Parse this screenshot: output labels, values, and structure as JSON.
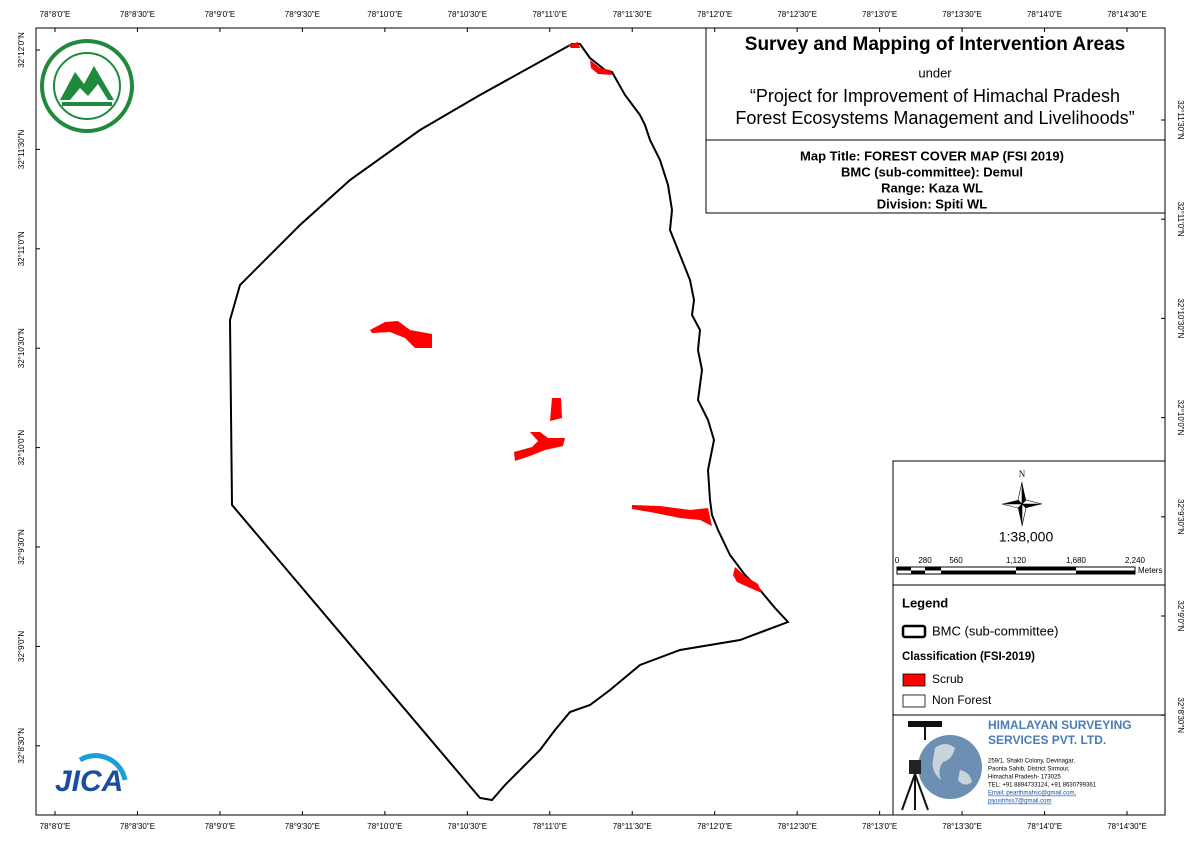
{
  "graticule": {
    "top": [
      "78°8'0\"E",
      "78°8'30\"E",
      "78°9'0\"E",
      "78°9'30\"E",
      "78°10'0\"E",
      "78°10'30\"E",
      "78°11'0\"E",
      "78°11'30\"E",
      "78°12'0\"E",
      "78°12'30\"E",
      "78°13'0\"E",
      "78°13'30\"E",
      "78°14'0\"E",
      "78°14'30\"E"
    ],
    "bottom": [
      "78°8'0\"E",
      "78°8'30\"E",
      "78°9'0\"E",
      "78°9'30\"E",
      "78°10'0\"E",
      "78°10'30\"E",
      "78°11'0\"E",
      "78°11'30\"E",
      "78°12'0\"E",
      "78°12'30\"E",
      "78°13'0\"E",
      "78°13'30\"E",
      "78°14'0\"E",
      "78°14'30\"E"
    ],
    "left": [
      "32°12'0\"N",
      "32°11'30\"N",
      "32°11'0\"N",
      "32°10'30\"N",
      "32°10'0\"N",
      "32°9'30\"N",
      "32°9'0\"N",
      "32°8'30\"N"
    ],
    "right": [
      "32°11'30\"N",
      "32°11'0\"N",
      "32°10'30\"N",
      "32°10'0\"N",
      "32°9'30\"N",
      "32°9'0\"N",
      "32°8'30\"N"
    ]
  },
  "title_box": {
    "title": "Survey and Mapping of Intervention Areas",
    "under": "under",
    "project": [
      "“Project for Improvement of Himachal Pradesh",
      "Forest Ecosystems Management and Livelihoods”"
    ]
  },
  "map_info": [
    "Map Title: FOREST COVER MAP (FSI 2019)",
    "BMC (sub-committee): Demul",
    "Range: Kaza WL",
    "Division: Spiti WL"
  ],
  "north_arrow": "N",
  "scale": {
    "ratio": "1:38,000",
    "labels": [
      "0",
      "280",
      "560",
      "1,120",
      "1,680",
      "2,240"
    ],
    "unit": "Meters"
  },
  "legend": {
    "title": "Legend",
    "boundary": "BMC (sub-committee)",
    "classification": "Classification (FSI-2019)",
    "items": [
      {
        "label": "Scrub",
        "color": "#ff0000"
      },
      {
        "label": "Non Forest",
        "color": "#ffffff"
      }
    ]
  },
  "company": {
    "name": [
      "HIMALAYAN SURVEYING",
      "SERVICES PVT. LTD."
    ],
    "address": [
      "259/1, Shakti Colony, Devinagar,",
      "Paonta Sahib, District Sirmour,",
      "Himachal Pradesh- 173025",
      "TEL: +91 8894733124, +91 8630799361",
      "Email: pearthmahsc@gmail.com,",
      "piyushhss7@gmail.com"
    ]
  },
  "logos": {
    "jica": "JICA"
  }
}
